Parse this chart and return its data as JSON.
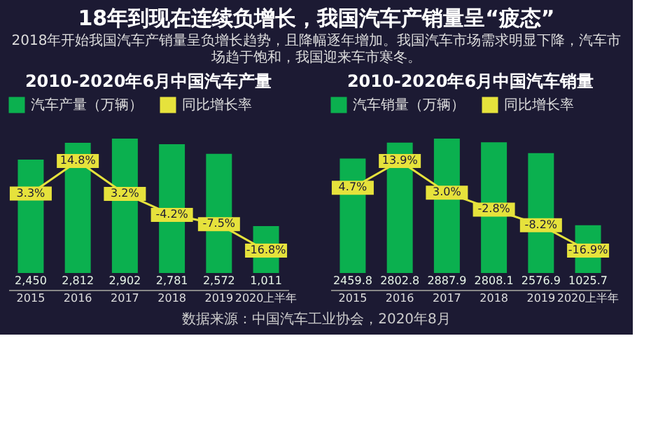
{
  "chart_data": [
    {
      "type": "bar",
      "title": "2010-2020年6月中国汽车产量",
      "annotations": [
        "18年到现在连续负增长，我国汽车产销量呈“疲态”",
        "2018年开始我国汽车产销量呈负增长趋势，且降幅逐年增加。我国汽车市场需求明显下降，汽车市场趋于饱和，我国迎来车市寒冬。"
      ],
      "categories": [
        "2015",
        "2016",
        "2017",
        "2018",
        "2019",
        "2020上半年"
      ],
      "legend": "top",
      "marker": "square",
      "line_style": "solid",
      "series": [
        {
          "name": "汽车产量（万辆）",
          "color": "#0bb04f",
          "values": [
            2450,
            2812,
            2902,
            2781,
            2572,
            1011
          ],
          "value_labels": [
            "2,450",
            "2,812",
            "2,902",
            "2,781",
            "2,572",
            "1,011"
          ]
        },
        {
          "name": "同比增长率",
          "type": "line",
          "axis": "y2",
          "color": "#e6e23c",
          "values": [
            3.3,
            14.8,
            3.2,
            -4.2,
            -7.5,
            -16.8
          ],
          "value_labels": [
            "3.3%",
            "14.8%",
            "3.2%",
            "-4.2%",
            "-7.5%",
            "-16.8%"
          ]
        }
      ]
    },
    {
      "type": "bar",
      "title": "2010-2020年6月中国汽车销量",
      "annotations": [
        "数据来源：中国汽车工业协会，2020年8月"
      ],
      "categories": [
        "2015",
        "2016",
        "2017",
        "2018",
        "2019",
        "2020上半年"
      ],
      "legend": "top",
      "marker": "square",
      "line_style": "solid",
      "series": [
        {
          "name": "汽车销量（万辆）",
          "color": "#0bb04f",
          "values": [
            2459.8,
            2802.8,
            2887.9,
            2808.1,
            2576.9,
            1025.7
          ],
          "value_labels": [
            "2459.8",
            "2802.8",
            "2887.9",
            "2808.1",
            "2576.9",
            "1025.7"
          ]
        },
        {
          "name": "同比增长率",
          "type": "line",
          "axis": "y2",
          "color": "#e6e23c",
          "values": [
            4.7,
            13.9,
            3.0,
            -2.8,
            -8.2,
            -16.9
          ],
          "value_labels": [
            "4.7%",
            "13.9%",
            "3.0%",
            "-2.8%",
            "-8.2%",
            "-16.9%"
          ]
        }
      ]
    }
  ]
}
